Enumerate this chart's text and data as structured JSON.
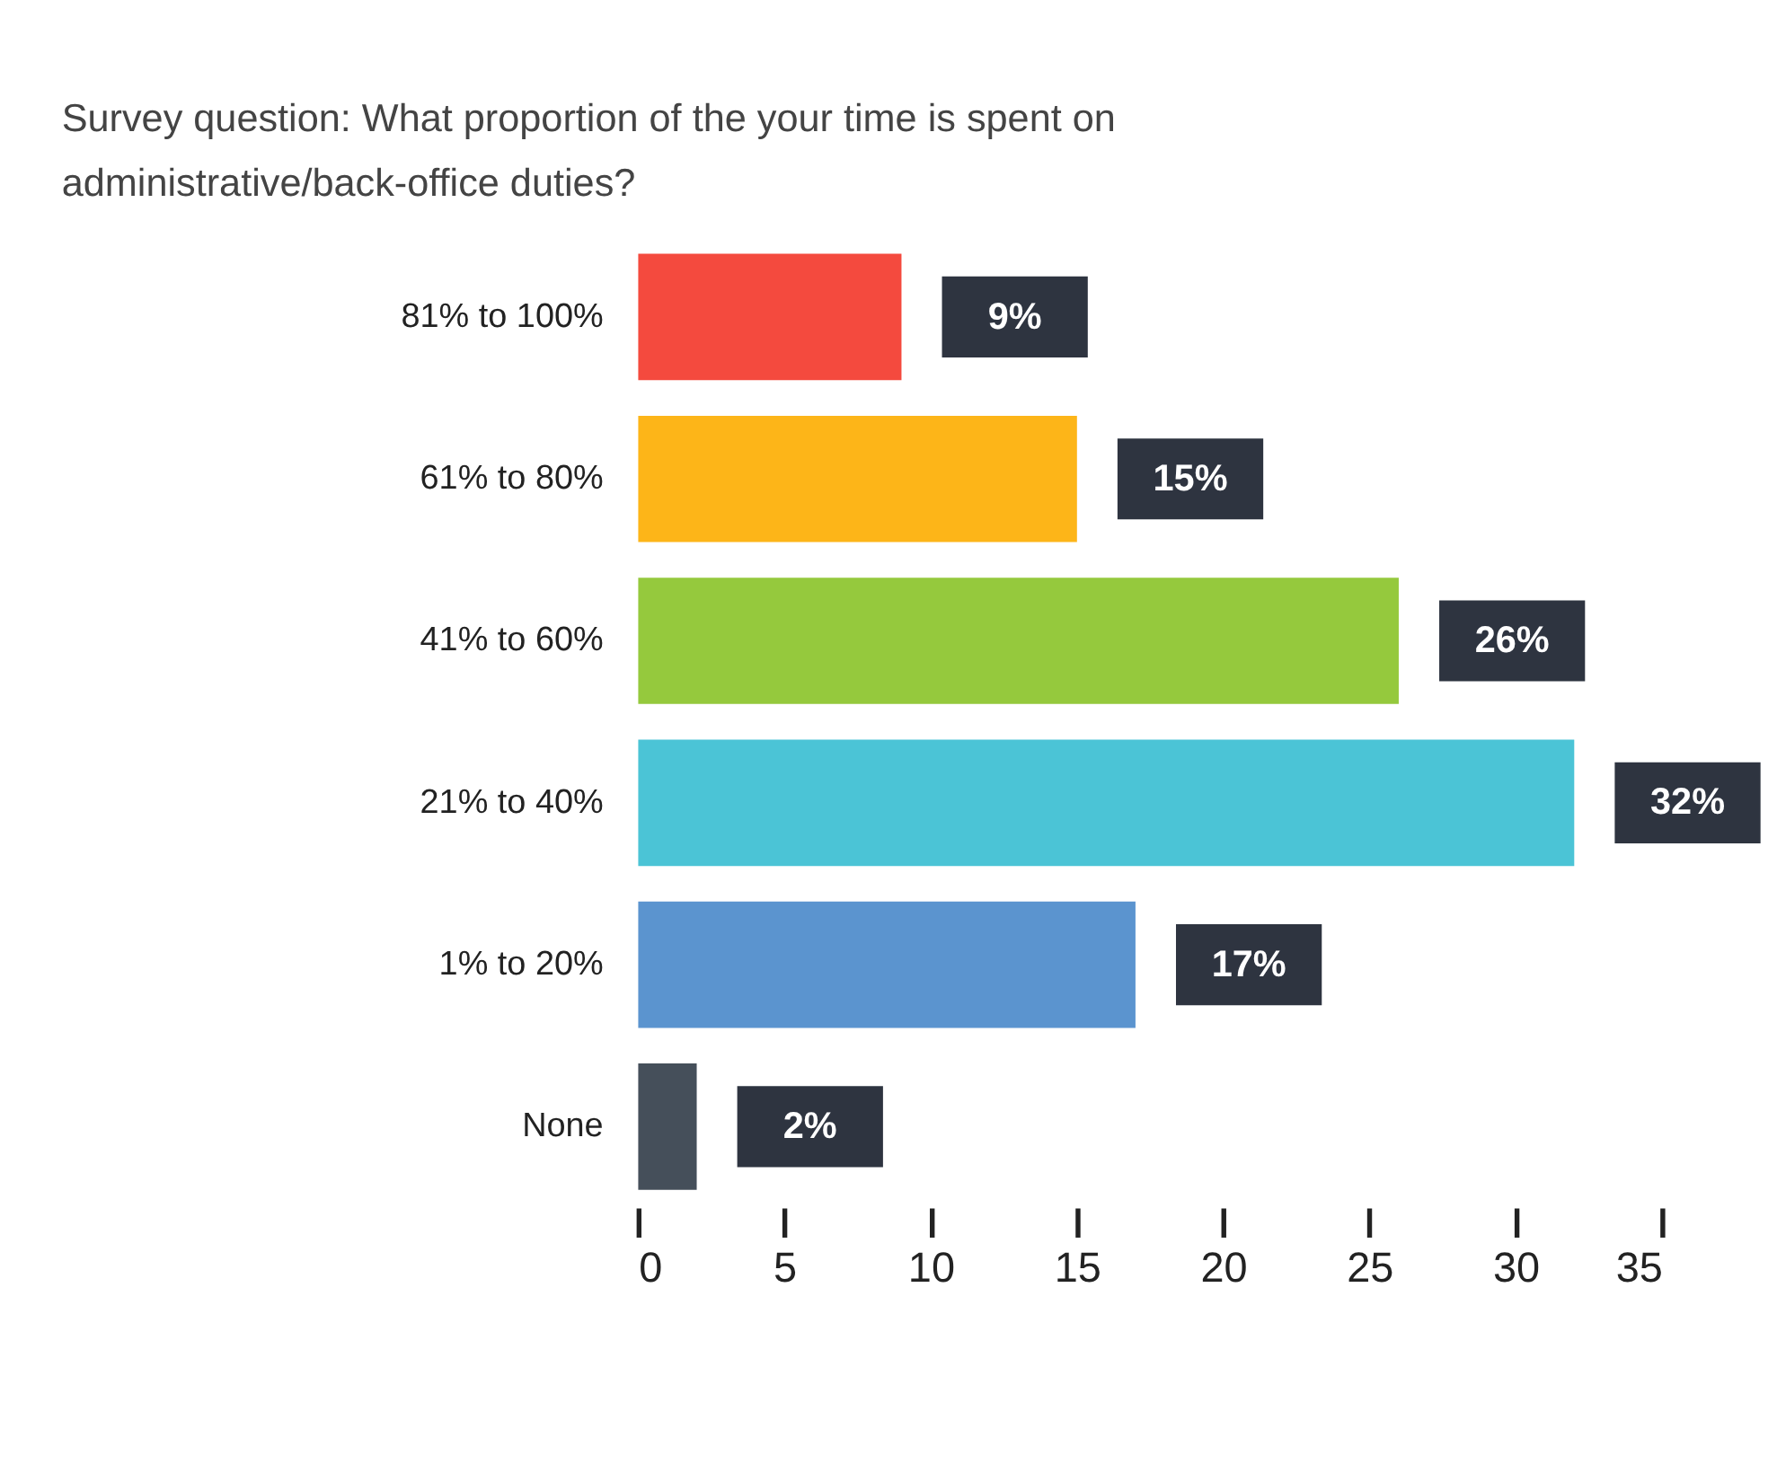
{
  "chart_data": {
    "type": "bar",
    "orientation": "horizontal",
    "title": "Survey question: What proportion of the your time is spent on administrative/back-office duties?",
    "categories": [
      "81% to 100%",
      "61% to 80%",
      "41% to 60%",
      "21% to 40%",
      "1% to 20%",
      "None"
    ],
    "values": [
      9,
      15,
      26,
      32,
      17,
      2
    ],
    "colors": [
      "#f44a3e",
      "#fdb518",
      "#95c93d",
      "#4bc4d6",
      "#5b94cf",
      "#454f5a"
    ],
    "value_labels": [
      "9%",
      "15%",
      "26%",
      "32%",
      "17%",
      "2%"
    ],
    "xlim": [
      0,
      35
    ],
    "xticks": [
      0,
      5,
      10,
      15,
      20,
      25,
      30,
      35
    ],
    "grid": false
  }
}
